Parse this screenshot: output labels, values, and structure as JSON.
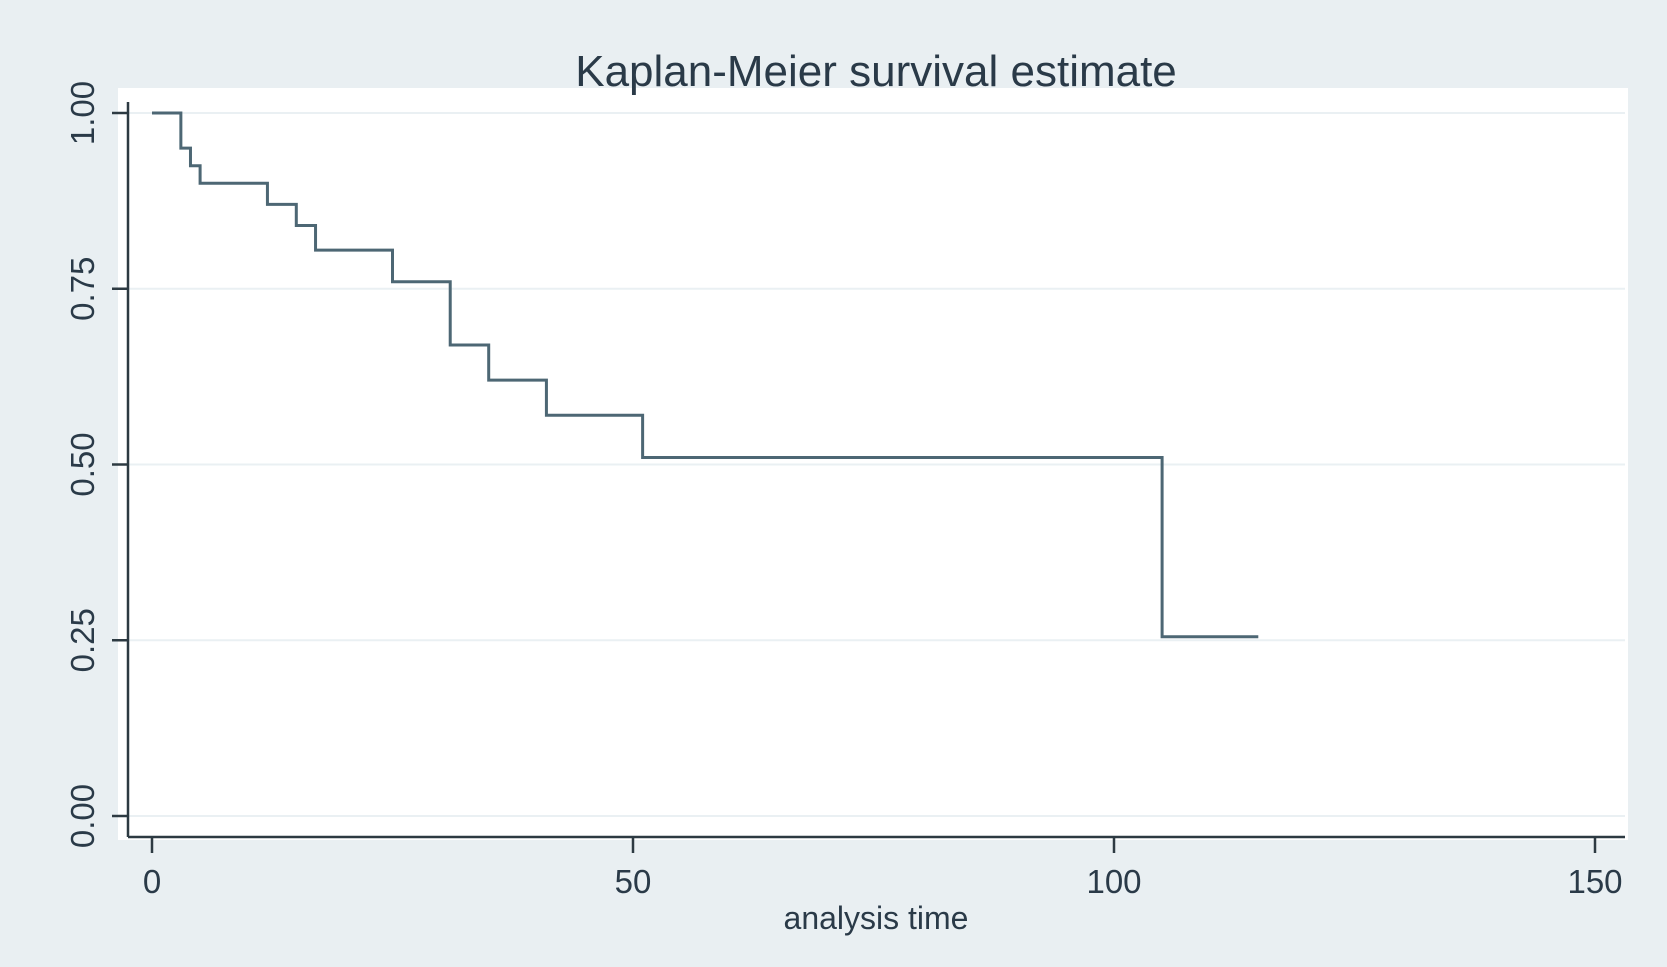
{
  "chart_data": {
    "type": "line",
    "step": true,
    "title": "Kaplan-Meier survival estimate",
    "xlabel": "analysis time",
    "ylabel": "",
    "xlim": [
      0,
      150
    ],
    "ylim": [
      0,
      1
    ],
    "x_ticks": [
      0,
      50,
      100,
      150
    ],
    "x_tick_labels": [
      "0",
      "50",
      "100",
      "150"
    ],
    "y_ticks": [
      0,
      0.25,
      0.5,
      0.75,
      1
    ],
    "y_tick_labels": [
      "0.00",
      "0.25",
      "0.50",
      "0.75",
      "1.00"
    ],
    "grid": true,
    "legend": false,
    "colors": {
      "outer_background": "#e9eff2",
      "plot_background": "#ffffff",
      "curve": "#4d6774",
      "axis": "#2d3a42",
      "text": "#2a3a48",
      "grid": "#eaf0f3"
    },
    "series": [
      {
        "step_points": [
          {
            "x": 0,
            "y": 1.0
          },
          {
            "x": 3,
            "y": 0.95
          },
          {
            "x": 3.5,
            "y": 0.95
          },
          {
            "x": 4,
            "y": 0.925
          },
          {
            "x": 5,
            "y": 0.9
          },
          {
            "x": 12,
            "y": 0.87
          },
          {
            "x": 15,
            "y": 0.84
          },
          {
            "x": 17,
            "y": 0.805
          },
          {
            "x": 25,
            "y": 0.76
          },
          {
            "x": 31,
            "y": 0.67
          },
          {
            "x": 35,
            "y": 0.62
          },
          {
            "x": 41,
            "y": 0.57
          },
          {
            "x": 51,
            "y": 0.51
          },
          {
            "x": 105,
            "y": 0.255
          }
        ],
        "end_x": 115
      }
    ]
  }
}
